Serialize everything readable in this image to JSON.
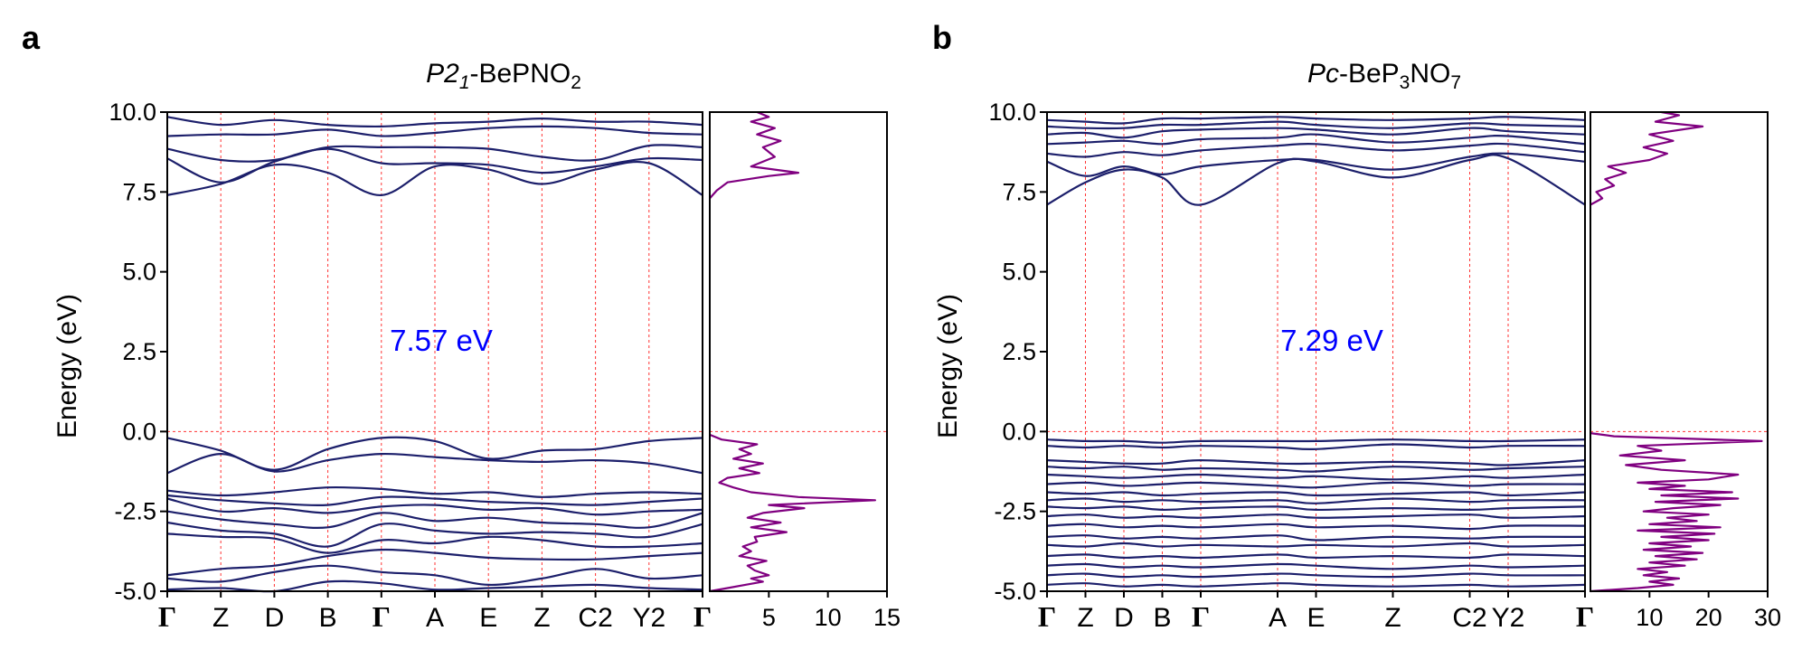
{
  "colors": {
    "band": "#1c1f6b",
    "dos": "#800080",
    "grid": "#ff3333",
    "gap_label": "#0000ff"
  },
  "chart_data": [
    {
      "type": "line",
      "panel_label": "a",
      "title": {
        "italic": "P2",
        "italic_sub": "1",
        "rest": "-BePNO",
        "sub": "2"
      },
      "ylabel": "Energy (eV)",
      "ylim": [
        -5.0,
        10.0
      ],
      "yticks": [
        "10.0",
        "7.5",
        "5.0",
        "2.5",
        "0.0",
        "-2.5",
        "-5.0"
      ],
      "ytick_values": [
        10.0,
        7.5,
        5.0,
        2.5,
        0.0,
        -2.5,
        -5.0
      ],
      "kpath": [
        "Γ",
        "Z",
        "D",
        "B",
        "Γ",
        "A",
        "E",
        "Z",
        "C2",
        "Y2",
        "Γ"
      ],
      "kpath_positions": [
        0,
        1,
        2,
        3,
        4,
        5,
        6,
        7,
        8,
        9,
        10
      ],
      "band_gap_label": "7.57 eV",
      "fermi_level": 0.0,
      "series": [
        {
          "values": [
            7.4,
            7.75,
            8.35,
            8.1,
            7.4,
            8.3,
            8.2,
            7.75,
            8.2,
            8.4,
            7.4
          ]
        },
        {
          "values": [
            8.55,
            7.8,
            8.45,
            8.85,
            8.4,
            8.4,
            8.35,
            8.1,
            8.3,
            8.55,
            8.5
          ]
        },
        {
          "values": [
            8.85,
            8.5,
            8.5,
            8.9,
            8.9,
            8.9,
            8.85,
            8.6,
            8.5,
            8.95,
            8.9
          ]
        },
        {
          "values": [
            9.25,
            9.3,
            9.3,
            9.45,
            9.25,
            9.35,
            9.5,
            9.55,
            9.5,
            9.35,
            9.3
          ]
        },
        {
          "values": [
            9.85,
            9.6,
            9.75,
            9.6,
            9.55,
            9.65,
            9.7,
            9.8,
            9.7,
            9.7,
            9.6
          ]
        },
        {
          "values": [
            -0.2,
            -0.6,
            -1.2,
            -0.55,
            -0.2,
            -0.3,
            -0.85,
            -0.6,
            -0.55,
            -0.3,
            -0.2
          ]
        },
        {
          "values": [
            -1.3,
            -0.7,
            -1.25,
            -0.9,
            -0.7,
            -0.8,
            -0.9,
            -0.95,
            -0.9,
            -1.0,
            -1.3
          ]
        },
        {
          "values": [
            -1.85,
            -2.0,
            -1.9,
            -1.75,
            -1.8,
            -1.95,
            -1.9,
            -2.05,
            -1.95,
            -1.9,
            -1.95
          ]
        },
        {
          "values": [
            -2.0,
            -2.15,
            -2.25,
            -2.3,
            -2.05,
            -2.1,
            -2.2,
            -2.25,
            -2.3,
            -2.2,
            -2.1
          ]
        },
        {
          "values": [
            -2.1,
            -2.5,
            -2.4,
            -2.55,
            -2.35,
            -2.3,
            -2.45,
            -2.4,
            -2.6,
            -2.5,
            -2.45
          ]
        },
        {
          "values": [
            -2.5,
            -2.75,
            -2.9,
            -3.0,
            -2.55,
            -2.8,
            -2.7,
            -2.85,
            -2.9,
            -3.0,
            -2.55
          ]
        },
        {
          "values": [
            -2.85,
            -3.1,
            -3.2,
            -3.6,
            -2.9,
            -3.1,
            -3.2,
            -3.15,
            -3.2,
            -3.3,
            -2.9
          ]
        },
        {
          "values": [
            -3.2,
            -3.3,
            -3.35,
            -3.8,
            -3.4,
            -3.5,
            -3.3,
            -3.4,
            -3.6,
            -3.6,
            -3.5
          ]
        },
        {
          "values": [
            -4.5,
            -4.3,
            -4.2,
            -3.9,
            -3.7,
            -3.8,
            -3.95,
            -4.0,
            -4.0,
            -3.9,
            -3.8
          ]
        },
        {
          "values": [
            -4.6,
            -4.7,
            -4.4,
            -4.2,
            -4.4,
            -4.5,
            -4.8,
            -4.6,
            -4.3,
            -4.6,
            -4.5
          ]
        },
        {
          "values": [
            -4.95,
            -4.9,
            -5.0,
            -4.7,
            -4.75,
            -4.95,
            -4.9,
            -4.85,
            -4.8,
            -4.9,
            -4.95
          ]
        }
      ],
      "dos": {
        "xlim": [
          0,
          15
        ],
        "xticks": [
          "5",
          "10",
          "15"
        ],
        "xtick_values": [
          5,
          10,
          15
        ],
        "points": [
          [
            0.0,
            -5.0
          ],
          [
            1.5,
            -4.9
          ],
          [
            3.0,
            -4.8
          ],
          [
            4.5,
            -4.7
          ],
          [
            3.5,
            -4.6
          ],
          [
            5.0,
            -4.5
          ],
          [
            3.8,
            -4.35
          ],
          [
            3.2,
            -4.2
          ],
          [
            4.8,
            -4.05
          ],
          [
            2.5,
            -3.9
          ],
          [
            3.5,
            -3.75
          ],
          [
            2.8,
            -3.6
          ],
          [
            4.0,
            -3.45
          ],
          [
            3.8,
            -3.3
          ],
          [
            6.5,
            -3.15
          ],
          [
            3.5,
            -3.0
          ],
          [
            6.0,
            -2.85
          ],
          [
            3.2,
            -2.7
          ],
          [
            4.5,
            -2.55
          ],
          [
            8.0,
            -2.4
          ],
          [
            5.0,
            -2.3
          ],
          [
            14.0,
            -2.15
          ],
          [
            7.5,
            -2.05
          ],
          [
            3.5,
            -1.9
          ],
          [
            2.0,
            -1.75
          ],
          [
            0.8,
            -1.6
          ],
          [
            1.5,
            -1.45
          ],
          [
            4.2,
            -1.3
          ],
          [
            2.5,
            -1.15
          ],
          [
            4.5,
            -1.0
          ],
          [
            2.0,
            -0.85
          ],
          [
            3.5,
            -0.7
          ],
          [
            2.5,
            -0.55
          ],
          [
            4.0,
            -0.4
          ],
          [
            1.0,
            -0.25
          ],
          [
            0.0,
            -0.1
          ],
          [
            0.0,
            7.3
          ],
          [
            0.6,
            7.55
          ],
          [
            1.5,
            7.8
          ],
          [
            5.0,
            8.0
          ],
          [
            7.5,
            8.1
          ],
          [
            3.5,
            8.3
          ],
          [
            5.5,
            8.6
          ],
          [
            4.5,
            8.9
          ],
          [
            6.0,
            9.1
          ],
          [
            4.0,
            9.3
          ],
          [
            5.5,
            9.5
          ],
          [
            3.5,
            9.7
          ],
          [
            5.0,
            9.85
          ],
          [
            4.0,
            10.0
          ]
        ]
      }
    },
    {
      "type": "line",
      "panel_label": "b",
      "title": {
        "italic": "Pc",
        "rest1": "-BeP",
        "sub1": "3",
        "rest2": "NO",
        "sub2": "7"
      },
      "ylabel": "Energy (eV)",
      "ylim": [
        -5.0,
        10.0
      ],
      "yticks": [
        "10.0",
        "7.5",
        "5.0",
        "2.5",
        "0.0",
        "-2.5",
        "-5.0"
      ],
      "ytick_values": [
        10.0,
        7.5,
        5.0,
        2.5,
        0.0,
        -2.5,
        -5.0
      ],
      "kpath": [
        "Γ",
        "Z",
        "D",
        "B",
        "Γ",
        "A",
        "E",
        "Z",
        "C2",
        "Y2",
        "Γ"
      ],
      "kpath_positions": [
        0,
        1,
        2,
        3,
        4,
        6,
        7,
        9,
        11,
        12,
        14
      ],
      "band_gap_label": "7.29 eV",
      "fermi_level": 0.0,
      "series": [
        {
          "values": [
            7.1,
            7.8,
            8.2,
            7.95,
            7.1,
            8.4,
            8.45,
            7.95,
            8.5,
            8.55,
            7.1
          ]
        },
        {
          "values": [
            8.45,
            8.0,
            8.3,
            8.05,
            8.3,
            8.5,
            8.5,
            8.2,
            8.6,
            8.7,
            8.45
          ]
        },
        {
          "values": [
            8.7,
            8.6,
            8.75,
            8.65,
            8.8,
            8.95,
            9.0,
            8.8,
            8.95,
            9.0,
            8.75
          ]
        },
        {
          "values": [
            9.0,
            9.05,
            9.1,
            9.0,
            9.15,
            9.2,
            9.3,
            9.05,
            9.2,
            9.25,
            9.0
          ]
        },
        {
          "values": [
            9.3,
            9.35,
            9.2,
            9.4,
            9.45,
            9.5,
            9.45,
            9.3,
            9.5,
            9.4,
            9.3
          ]
        },
        {
          "values": [
            9.55,
            9.5,
            9.5,
            9.6,
            9.6,
            9.7,
            9.6,
            9.5,
            9.65,
            9.6,
            9.55
          ]
        },
        {
          "values": [
            9.75,
            9.7,
            9.65,
            9.8,
            9.8,
            9.85,
            9.8,
            9.75,
            9.8,
            9.85,
            9.75
          ]
        },
        {
          "values": [
            -0.25,
            -0.3,
            -0.3,
            -0.35,
            -0.3,
            -0.3,
            -0.3,
            -0.25,
            -0.3,
            -0.3,
            -0.25
          ]
        },
        {
          "values": [
            -0.45,
            -0.5,
            -0.45,
            -0.5,
            -0.45,
            -0.5,
            -0.55,
            -0.4,
            -0.5,
            -0.45,
            -0.45
          ]
        },
        {
          "values": [
            -0.9,
            -0.95,
            -1.0,
            -1.0,
            -0.9,
            -1.0,
            -1.0,
            -0.95,
            -1.0,
            -1.05,
            -0.9
          ]
        },
        {
          "values": [
            -1.1,
            -1.15,
            -1.1,
            -1.2,
            -1.15,
            -1.2,
            -1.25,
            -1.1,
            -1.2,
            -1.15,
            -1.1
          ]
        },
        {
          "values": [
            -1.35,
            -1.4,
            -1.45,
            -1.4,
            -1.35,
            -1.45,
            -1.4,
            -1.5,
            -1.4,
            -1.45,
            -1.35
          ]
        },
        {
          "values": [
            -1.65,
            -1.6,
            -1.7,
            -1.65,
            -1.6,
            -1.7,
            -1.75,
            -1.6,
            -1.7,
            -1.65,
            -1.65
          ]
        },
        {
          "values": [
            -1.9,
            -1.95,
            -1.9,
            -2.0,
            -1.95,
            -1.9,
            -2.0,
            -1.95,
            -1.9,
            -2.0,
            -1.9
          ]
        },
        {
          "values": [
            -2.15,
            -2.1,
            -2.2,
            -2.15,
            -2.2,
            -2.15,
            -2.25,
            -2.1,
            -2.2,
            -2.15,
            -2.15
          ]
        },
        {
          "values": [
            -2.35,
            -2.4,
            -2.35,
            -2.45,
            -2.4,
            -2.35,
            -2.45,
            -2.4,
            -2.45,
            -2.4,
            -2.35
          ]
        },
        {
          "values": [
            -2.65,
            -2.6,
            -2.7,
            -2.65,
            -2.7,
            -2.6,
            -2.7,
            -2.65,
            -2.6,
            -2.7,
            -2.65
          ]
        },
        {
          "values": [
            -2.95,
            -2.9,
            -3.0,
            -2.95,
            -3.0,
            -2.9,
            -3.0,
            -2.95,
            -3.05,
            -2.95,
            -2.95
          ]
        },
        {
          "values": [
            -3.3,
            -3.25,
            -3.35,
            -3.3,
            -3.35,
            -3.25,
            -3.4,
            -3.3,
            -3.35,
            -3.3,
            -3.3
          ]
        },
        {
          "values": [
            -3.55,
            -3.6,
            -3.5,
            -3.6,
            -3.55,
            -3.6,
            -3.55,
            -3.6,
            -3.5,
            -3.6,
            -3.55
          ]
        },
        {
          "values": [
            -3.9,
            -3.85,
            -3.95,
            -3.9,
            -3.95,
            -3.85,
            -3.95,
            -3.9,
            -3.95,
            -3.85,
            -3.9
          ]
        },
        {
          "values": [
            -4.2,
            -4.15,
            -4.25,
            -4.2,
            -4.25,
            -4.15,
            -4.2,
            -4.3,
            -4.2,
            -4.25,
            -4.2
          ]
        },
        {
          "values": [
            -4.5,
            -4.45,
            -4.55,
            -4.5,
            -4.55,
            -4.45,
            -4.5,
            -4.55,
            -4.45,
            -4.5,
            -4.5
          ]
        },
        {
          "values": [
            -4.8,
            -4.75,
            -4.85,
            -4.8,
            -4.85,
            -4.75,
            -4.8,
            -4.85,
            -4.8,
            -4.85,
            -4.8
          ]
        }
      ],
      "dos": {
        "xlim": [
          0,
          30
        ],
        "xticks": [
          "10",
          "20",
          "30"
        ],
        "xtick_values": [
          10,
          20,
          30
        ],
        "points": [
          [
            0.0,
            -5.0
          ],
          [
            8.0,
            -4.9
          ],
          [
            14.0,
            -4.8
          ],
          [
            10.0,
            -4.7
          ],
          [
            15.0,
            -4.6
          ],
          [
            9.0,
            -4.5
          ],
          [
            13.0,
            -4.4
          ],
          [
            8.0,
            -4.3
          ],
          [
            16.0,
            -4.2
          ],
          [
            10.0,
            -4.1
          ],
          [
            18.0,
            -4.0
          ],
          [
            11.0,
            -3.9
          ],
          [
            19.0,
            -3.8
          ],
          [
            9.0,
            -3.7
          ],
          [
            17.0,
            -3.6
          ],
          [
            10.0,
            -3.5
          ],
          [
            20.0,
            -3.4
          ],
          [
            12.0,
            -3.3
          ],
          [
            21.0,
            -3.2
          ],
          [
            8.0,
            -3.1
          ],
          [
            22.0,
            -3.0
          ],
          [
            10.0,
            -2.9
          ],
          [
            18.0,
            -2.8
          ],
          [
            13.0,
            -2.7
          ],
          [
            20.0,
            -2.6
          ],
          [
            9.0,
            -2.5
          ],
          [
            14.0,
            -2.4
          ],
          [
            22.0,
            -2.3
          ],
          [
            11.0,
            -2.2
          ],
          [
            25.0,
            -2.1
          ],
          [
            12.0,
            -2.0
          ],
          [
            24.0,
            -1.9
          ],
          [
            10.0,
            -1.8
          ],
          [
            16.0,
            -1.7
          ],
          [
            8.0,
            -1.6
          ],
          [
            20.0,
            -1.5
          ],
          [
            25.0,
            -1.35
          ],
          [
            12.0,
            -1.2
          ],
          [
            6.0,
            -1.05
          ],
          [
            16.0,
            -0.9
          ],
          [
            5.0,
            -0.75
          ],
          [
            12.0,
            -0.6
          ],
          [
            8.0,
            -0.45
          ],
          [
            29.0,
            -0.3
          ],
          [
            4.0,
            -0.15
          ],
          [
            0.0,
            -0.05
          ],
          [
            0.0,
            7.1
          ],
          [
            2.0,
            7.3
          ],
          [
            1.0,
            7.5
          ],
          [
            4.0,
            7.7
          ],
          [
            2.5,
            7.9
          ],
          [
            6.0,
            8.1
          ],
          [
            3.0,
            8.3
          ],
          [
            10.0,
            8.5
          ],
          [
            13.0,
            8.7
          ],
          [
            9.0,
            8.9
          ],
          [
            14.0,
            9.1
          ],
          [
            10.0,
            9.3
          ],
          [
            19.0,
            9.55
          ],
          [
            11.0,
            9.7
          ],
          [
            15.0,
            9.9
          ],
          [
            12.0,
            10.0
          ]
        ]
      }
    }
  ]
}
